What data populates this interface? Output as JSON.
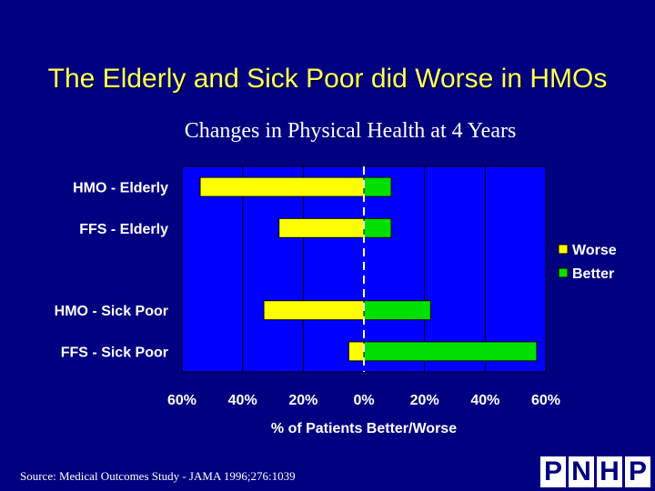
{
  "slide_title": "The Elderly and Sick Poor did Worse in HMOs",
  "source": "Source: Medical Outcomes Study - JAMA 1996;276:1039",
  "logo_letters": [
    "P",
    "N",
    "H",
    "P"
  ],
  "chart_data": {
    "type": "bar",
    "orientation": "horizontal",
    "title": "Changes in Physical Health at 4 Years",
    "xlabel": "% of Patients Better/Worse",
    "ylabel": "",
    "categories": [
      "HMO - Elderly",
      "FFS - Elderly",
      "",
      "HMO - Sick Poor",
      "FFS - Sick Poor"
    ],
    "series": [
      {
        "name": "Worse",
        "color": "#FFFF00",
        "values": [
          54,
          28,
          null,
          33,
          5
        ]
      },
      {
        "name": "Better",
        "color": "#00E000",
        "values": [
          9,
          9,
          null,
          22,
          57
        ]
      }
    ],
    "xlim": [
      -60,
      60
    ],
    "ticks": [
      -60,
      -40,
      -20,
      0,
      20,
      40,
      60
    ],
    "tick_labels": [
      "60%",
      "40%",
      "20%",
      "0%",
      "20%",
      "40%",
      "60%"
    ],
    "legend": {
      "position": "right",
      "entries": [
        "Worse",
        "Better"
      ]
    },
    "grid": true,
    "background_color": "#0000FF",
    "page_color": "#000080"
  }
}
